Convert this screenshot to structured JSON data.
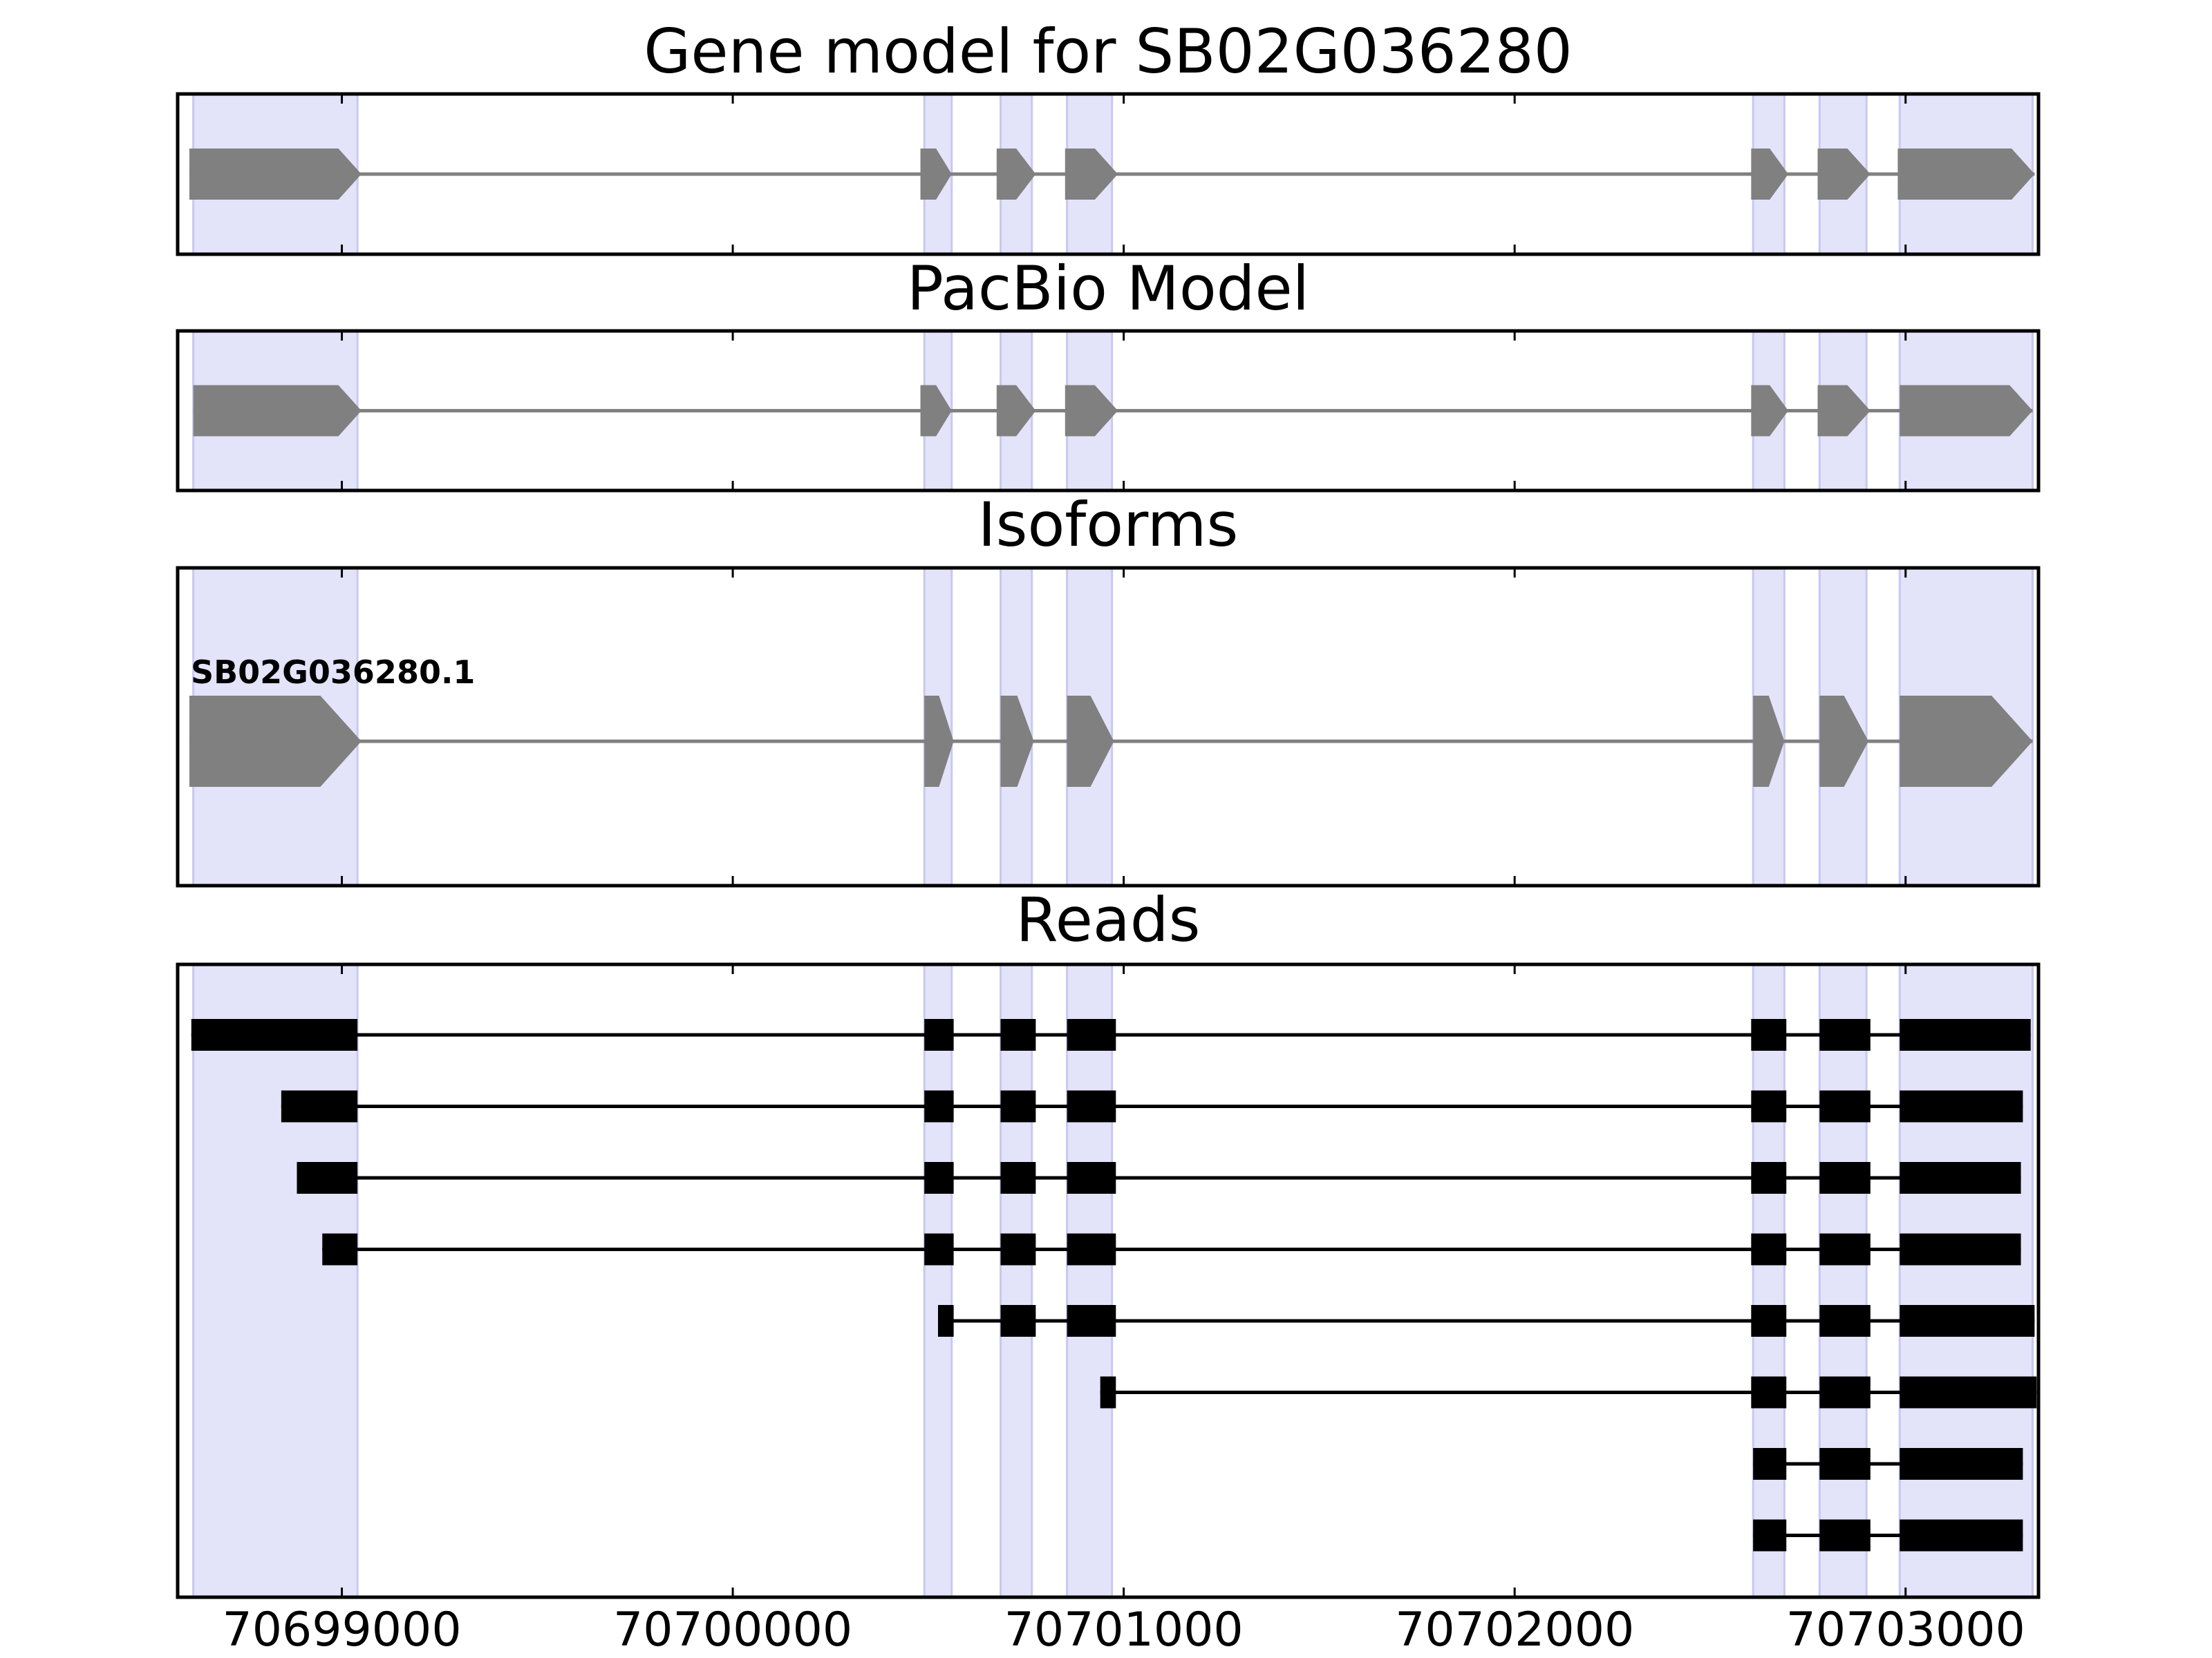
{
  "colors": {
    "exon_band": "#e3e3fa",
    "exon_band_edge": "#c8c8f0",
    "model_feature": "#808080",
    "read_feature": "#000000",
    "frame": "#000000"
  },
  "axis": {
    "xlim": [
      70698580,
      70703340
    ],
    "ticks": [
      70699000,
      70700000,
      70701000,
      70702000,
      70703000
    ],
    "tick_labels": [
      "70699000",
      "70700000",
      "70701000",
      "70702000",
      "70703000"
    ]
  },
  "exon_bands": [
    [
      70698620,
      70699040
    ],
    [
      70700490,
      70700560
    ],
    [
      70700685,
      70700765
    ],
    [
      70700855,
      70700970
    ],
    [
      70702610,
      70702690
    ],
    [
      70702780,
      70702900
    ],
    [
      70702985,
      70703325
    ]
  ],
  "panels": [
    {
      "id": "gene-model",
      "title": "Gene model for SB02G036280",
      "style": "model",
      "rows": [
        {
          "start": 70698610,
          "end": 70699050,
          "exons": [
            [
              70698610,
              70699050
            ],
            [
              70700480,
              70700560
            ],
            [
              70700675,
              70700775
            ],
            [
              70700850,
              70700985
            ],
            [
              70702605,
              70702700
            ],
            [
              70702775,
              70702910
            ],
            [
              70702980,
              70703330
            ]
          ]
        }
      ]
    },
    {
      "id": "pacbio-model",
      "title": "PacBio Model",
      "style": "model",
      "rows": [
        {
          "start": 70698620,
          "end": 70699050,
          "exons": [
            [
              70698620,
              70699050
            ],
            [
              70700480,
              70700560
            ],
            [
              70700675,
              70700775
            ],
            [
              70700850,
              70700985
            ],
            [
              70702605,
              70702700
            ],
            [
              70702775,
              70702910
            ],
            [
              70702985,
              70703325
            ]
          ]
        }
      ]
    },
    {
      "id": "isoforms",
      "title": "Isoforms",
      "style": "model",
      "rows": [
        {
          "label": "SB02G036280.1",
          "start": 70698610,
          "end": 70699050,
          "exons": [
            [
              70698610,
              70699050
            ],
            [
              70700490,
              70700565
            ],
            [
              70700685,
              70700770
            ],
            [
              70700855,
              70700975
            ],
            [
              70702610,
              70702690
            ],
            [
              70702780,
              70702905
            ],
            [
              70702985,
              70703325
            ]
          ]
        }
      ]
    },
    {
      "id": "reads",
      "title": "Reads",
      "style": "read",
      "rows": [
        {
          "exons": [
            [
              70698615,
              70699040
            ],
            [
              70700490,
              70700565
            ],
            [
              70700685,
              70700775
            ],
            [
              70700855,
              70700980
            ],
            [
              70702605,
              70702695
            ],
            [
              70702780,
              70702910
            ],
            [
              70702985,
              70703320
            ]
          ]
        },
        {
          "exons": [
            [
              70698845,
              70699040
            ],
            [
              70700490,
              70700565
            ],
            [
              70700685,
              70700775
            ],
            [
              70700855,
              70700980
            ],
            [
              70702605,
              70702695
            ],
            [
              70702780,
              70702910
            ],
            [
              70702985,
              70703300
            ]
          ]
        },
        {
          "exons": [
            [
              70698885,
              70699040
            ],
            [
              70700490,
              70700565
            ],
            [
              70700685,
              70700775
            ],
            [
              70700855,
              70700980
            ],
            [
              70702605,
              70702695
            ],
            [
              70702780,
              70702910
            ],
            [
              70702985,
              70703295
            ]
          ]
        },
        {
          "exons": [
            [
              70698950,
              70699040
            ],
            [
              70700490,
              70700565
            ],
            [
              70700685,
              70700775
            ],
            [
              70700855,
              70700980
            ],
            [
              70702605,
              70702695
            ],
            [
              70702780,
              70702910
            ],
            [
              70702985,
              70703295
            ]
          ]
        },
        {
          "exons": [
            [
              70700525,
              70700565
            ],
            [
              70700685,
              70700775
            ],
            [
              70700855,
              70700980
            ],
            [
              70702605,
              70702695
            ],
            [
              70702780,
              70702910
            ],
            [
              70702985,
              70703330
            ]
          ]
        },
        {
          "exons": [
            [
              70700940,
              70700980
            ],
            [
              70702605,
              70702695
            ],
            [
              70702780,
              70702910
            ],
            [
              70702985,
              70703335
            ]
          ]
        },
        {
          "exons": [
            [
              70702610,
              70702695
            ],
            [
              70702780,
              70702910
            ],
            [
              70702985,
              70703300
            ]
          ]
        },
        {
          "exons": [
            [
              70702610,
              70702695
            ],
            [
              70702780,
              70702910
            ],
            [
              70702985,
              70703300
            ]
          ]
        }
      ]
    }
  ]
}
